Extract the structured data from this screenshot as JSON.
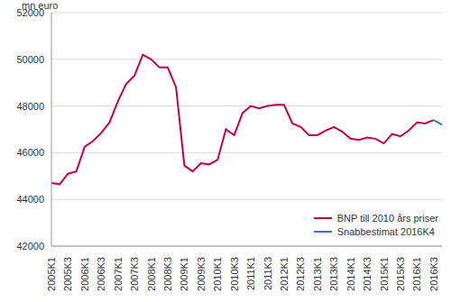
{
  "chart_data": {
    "type": "line",
    "y_label": "mn euro",
    "categories": [
      "2005K1",
      null,
      "2005K3",
      null,
      "2006K1",
      null,
      "2006K3",
      null,
      "2007K1",
      null,
      "2007K3",
      null,
      "2008K1",
      null,
      "2008K3",
      null,
      "2009K1",
      null,
      "2009K3",
      null,
      "2010K1",
      null,
      "2010K3",
      null,
      "2011K1",
      null,
      "2011K3",
      null,
      "2012K1",
      null,
      "2012K3",
      null,
      "2013K1",
      null,
      "2013K3",
      null,
      "2014K1",
      null,
      "2014K3",
      null,
      "2015K1",
      null,
      "2015K3",
      null,
      "2016K1",
      null,
      "2016K3",
      null
    ],
    "series": [
      {
        "name": "BNP till 2010 års priser",
        "color": "#c4004d",
        "values": [
          44700,
          44650,
          45100,
          45200,
          46250,
          46500,
          46850,
          47300,
          48200,
          48950,
          49300,
          50200,
          50000,
          49650,
          49650,
          48800,
          45450,
          45200,
          45550,
          45500,
          45700,
          47000,
          46750,
          47700,
          48000,
          47900,
          48000,
          48050,
          48050,
          47250,
          47100,
          46750,
          46750,
          46950,
          47100,
          46900,
          46600,
          46550,
          46650,
          46600,
          46400,
          46800,
          46700,
          46950,
          47300,
          47250,
          47400,
          null
        ]
      },
      {
        "name": "Snabbestimat 2016K4",
        "color": "#2a7fb8",
        "values": [
          null,
          null,
          null,
          null,
          null,
          null,
          null,
          null,
          null,
          null,
          null,
          null,
          null,
          null,
          null,
          null,
          null,
          null,
          null,
          null,
          null,
          null,
          null,
          null,
          null,
          null,
          null,
          null,
          null,
          null,
          null,
          null,
          null,
          null,
          null,
          null,
          null,
          null,
          null,
          null,
          null,
          null,
          null,
          null,
          null,
          null,
          47400,
          47200
        ]
      }
    ],
    "ylim": [
      42000,
      52000
    ],
    "yticks": [
      42000,
      44000,
      46000,
      48000,
      50000,
      52000
    ],
    "grid": true,
    "legend": "lower right"
  }
}
